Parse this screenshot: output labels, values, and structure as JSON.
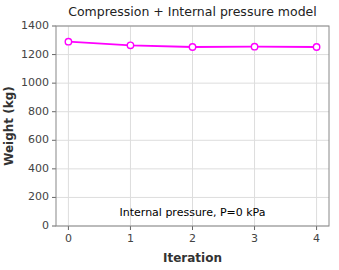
{
  "chart_data": {
    "type": "line",
    "title": "Compression + Internal pressure model",
    "x_label": "Iteration",
    "y_label": "Weight (kg)",
    "x": [
      0,
      1,
      2,
      3,
      4
    ],
    "values": [
      1290,
      1265,
      1253,
      1255,
      1253
    ],
    "color": "#FF00FF",
    "marker": "circle",
    "line_style": "solid",
    "xlim": [
      -0.2,
      4.2
    ],
    "ylim": [
      0,
      1400
    ],
    "xticks": [
      0,
      1,
      2,
      3,
      4
    ],
    "yticks": [
      0,
      200,
      400,
      600,
      800,
      1000,
      1200,
      1400
    ],
    "grid": true,
    "annotations": [
      "Internal pressure, P=0 kPa"
    ]
  }
}
